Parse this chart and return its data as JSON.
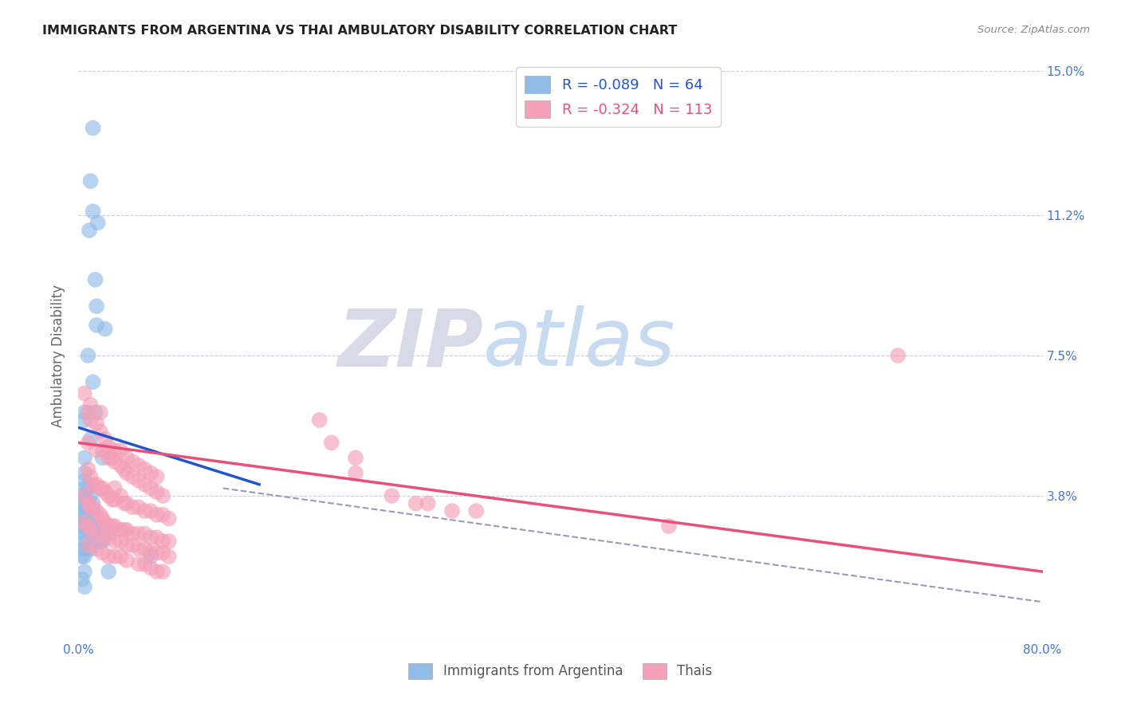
{
  "title": "IMMIGRANTS FROM ARGENTINA VS THAI AMBULATORY DISABILITY CORRELATION CHART",
  "source": "Source: ZipAtlas.com",
  "ylabel": "Ambulatory Disability",
  "xlim": [
    0.0,
    0.8
  ],
  "ylim": [
    0.0,
    0.15
  ],
  "yticks": [
    0.0,
    0.038,
    0.075,
    0.112,
    0.15
  ],
  "ytick_labels": [
    "",
    "3.8%",
    "7.5%",
    "11.2%",
    "15.0%"
  ],
  "xticks": [
    0.0,
    0.1,
    0.2,
    0.3,
    0.4,
    0.5,
    0.6,
    0.7,
    0.8
  ],
  "xtick_labels": [
    "0.0%",
    "",
    "",
    "",
    "",
    "",
    "",
    "",
    "80.0%"
  ],
  "argentina_R": -0.089,
  "argentina_N": 64,
  "thai_R": -0.324,
  "thai_N": 113,
  "argentina_color": "#92bce8",
  "thai_color": "#f4a0b8",
  "argentina_line_color": "#2255cc",
  "thai_line_color": "#e8507a",
  "dashed_line_color": "#9999bb",
  "background_color": "#ffffff",
  "grid_color": "#ccccdd",
  "watermark_zip": "ZIP",
  "watermark_atlas": "atlas",
  "title_color": "#222222",
  "right_tick_color": "#4477cc",
  "legend_text_color": "#333333",
  "source_color": "#888888",
  "argentina_scatter": [
    [
      0.012,
      0.135
    ],
    [
      0.01,
      0.121
    ],
    [
      0.012,
      0.113
    ],
    [
      0.016,
      0.11
    ],
    [
      0.009,
      0.108
    ],
    [
      0.014,
      0.095
    ],
    [
      0.015,
      0.088
    ],
    [
      0.015,
      0.083
    ],
    [
      0.022,
      0.082
    ],
    [
      0.012,
      0.068
    ],
    [
      0.014,
      0.06
    ],
    [
      0.008,
      0.075
    ],
    [
      0.005,
      0.06
    ],
    [
      0.005,
      0.058
    ],
    [
      0.01,
      0.053
    ],
    [
      0.02,
      0.048
    ],
    [
      0.005,
      0.048
    ],
    [
      0.005,
      0.044
    ],
    [
      0.005,
      0.042
    ],
    [
      0.005,
      0.04
    ],
    [
      0.005,
      0.038
    ],
    [
      0.005,
      0.036
    ],
    [
      0.008,
      0.04
    ],
    [
      0.01,
      0.038
    ],
    [
      0.012,
      0.036
    ],
    [
      0.008,
      0.036
    ],
    [
      0.01,
      0.034
    ],
    [
      0.012,
      0.034
    ],
    [
      0.005,
      0.034
    ],
    [
      0.008,
      0.032
    ],
    [
      0.005,
      0.032
    ],
    [
      0.003,
      0.038
    ],
    [
      0.003,
      0.036
    ],
    [
      0.003,
      0.034
    ],
    [
      0.003,
      0.032
    ],
    [
      0.003,
      0.03
    ],
    [
      0.003,
      0.028
    ],
    [
      0.005,
      0.03
    ],
    [
      0.005,
      0.028
    ],
    [
      0.008,
      0.03
    ],
    [
      0.01,
      0.03
    ],
    [
      0.01,
      0.028
    ],
    [
      0.012,
      0.03
    ],
    [
      0.012,
      0.028
    ],
    [
      0.015,
      0.03
    ],
    [
      0.015,
      0.028
    ],
    [
      0.015,
      0.026
    ],
    [
      0.018,
      0.028
    ],
    [
      0.018,
      0.026
    ],
    [
      0.02,
      0.028
    ],
    [
      0.02,
      0.026
    ],
    [
      0.005,
      0.026
    ],
    [
      0.005,
      0.024
    ],
    [
      0.008,
      0.024
    ],
    [
      0.01,
      0.024
    ],
    [
      0.003,
      0.024
    ],
    [
      0.003,
      0.022
    ],
    [
      0.005,
      0.022
    ],
    [
      0.06,
      0.022
    ],
    [
      0.005,
      0.018
    ],
    [
      0.025,
      0.018
    ],
    [
      0.025,
      0.028
    ],
    [
      0.003,
      0.016
    ],
    [
      0.005,
      0.014
    ]
  ],
  "thai_scatter": [
    [
      0.005,
      0.065
    ],
    [
      0.008,
      0.06
    ],
    [
      0.01,
      0.058
    ],
    [
      0.01,
      0.062
    ],
    [
      0.015,
      0.057
    ],
    [
      0.018,
      0.055
    ],
    [
      0.018,
      0.06
    ],
    [
      0.022,
      0.053
    ],
    [
      0.025,
      0.051
    ],
    [
      0.008,
      0.052
    ],
    [
      0.015,
      0.05
    ],
    [
      0.02,
      0.05
    ],
    [
      0.025,
      0.048
    ],
    [
      0.028,
      0.048
    ],
    [
      0.03,
      0.047
    ],
    [
      0.03,
      0.05
    ],
    [
      0.035,
      0.046
    ],
    [
      0.035,
      0.05
    ],
    [
      0.038,
      0.045
    ],
    [
      0.04,
      0.044
    ],
    [
      0.04,
      0.048
    ],
    [
      0.045,
      0.043
    ],
    [
      0.045,
      0.047
    ],
    [
      0.05,
      0.042
    ],
    [
      0.05,
      0.046
    ],
    [
      0.055,
      0.041
    ],
    [
      0.055,
      0.045
    ],
    [
      0.06,
      0.044
    ],
    [
      0.06,
      0.04
    ],
    [
      0.065,
      0.039
    ],
    [
      0.065,
      0.043
    ],
    [
      0.008,
      0.045
    ],
    [
      0.01,
      0.043
    ],
    [
      0.012,
      0.041
    ],
    [
      0.015,
      0.041
    ],
    [
      0.018,
      0.04
    ],
    [
      0.02,
      0.04
    ],
    [
      0.022,
      0.039
    ],
    [
      0.025,
      0.038
    ],
    [
      0.028,
      0.037
    ],
    [
      0.03,
      0.037
    ],
    [
      0.03,
      0.04
    ],
    [
      0.035,
      0.038
    ],
    [
      0.038,
      0.036
    ],
    [
      0.04,
      0.036
    ],
    [
      0.045,
      0.035
    ],
    [
      0.05,
      0.035
    ],
    [
      0.055,
      0.034
    ],
    [
      0.06,
      0.034
    ],
    [
      0.065,
      0.033
    ],
    [
      0.07,
      0.038
    ],
    [
      0.07,
      0.033
    ],
    [
      0.075,
      0.032
    ],
    [
      0.005,
      0.038
    ],
    [
      0.008,
      0.036
    ],
    [
      0.01,
      0.035
    ],
    [
      0.012,
      0.035
    ],
    [
      0.015,
      0.034
    ],
    [
      0.018,
      0.033
    ],
    [
      0.02,
      0.032
    ],
    [
      0.022,
      0.031
    ],
    [
      0.025,
      0.03
    ],
    [
      0.028,
      0.03
    ],
    [
      0.03,
      0.03
    ],
    [
      0.035,
      0.029
    ],
    [
      0.038,
      0.029
    ],
    [
      0.04,
      0.029
    ],
    [
      0.045,
      0.028
    ],
    [
      0.05,
      0.028
    ],
    [
      0.055,
      0.028
    ],
    [
      0.06,
      0.027
    ],
    [
      0.065,
      0.027
    ],
    [
      0.07,
      0.026
    ],
    [
      0.075,
      0.026
    ],
    [
      0.005,
      0.031
    ],
    [
      0.008,
      0.03
    ],
    [
      0.01,
      0.029
    ],
    [
      0.015,
      0.028
    ],
    [
      0.02,
      0.027
    ],
    [
      0.025,
      0.027
    ],
    [
      0.03,
      0.026
    ],
    [
      0.035,
      0.026
    ],
    [
      0.04,
      0.025
    ],
    [
      0.045,
      0.025
    ],
    [
      0.05,
      0.024
    ],
    [
      0.055,
      0.024
    ],
    [
      0.06,
      0.023
    ],
    [
      0.065,
      0.023
    ],
    [
      0.07,
      0.023
    ],
    [
      0.075,
      0.022
    ],
    [
      0.008,
      0.025
    ],
    [
      0.015,
      0.024
    ],
    [
      0.02,
      0.023
    ],
    [
      0.025,
      0.022
    ],
    [
      0.03,
      0.022
    ],
    [
      0.035,
      0.022
    ],
    [
      0.04,
      0.021
    ],
    [
      0.05,
      0.02
    ],
    [
      0.055,
      0.02
    ],
    [
      0.06,
      0.019
    ],
    [
      0.065,
      0.018
    ],
    [
      0.07,
      0.018
    ],
    [
      0.2,
      0.058
    ],
    [
      0.21,
      0.052
    ],
    [
      0.23,
      0.048
    ],
    [
      0.23,
      0.044
    ],
    [
      0.26,
      0.038
    ],
    [
      0.28,
      0.036
    ],
    [
      0.29,
      0.036
    ],
    [
      0.31,
      0.034
    ],
    [
      0.33,
      0.034
    ],
    [
      0.68,
      0.075
    ],
    [
      0.49,
      0.03
    ]
  ]
}
